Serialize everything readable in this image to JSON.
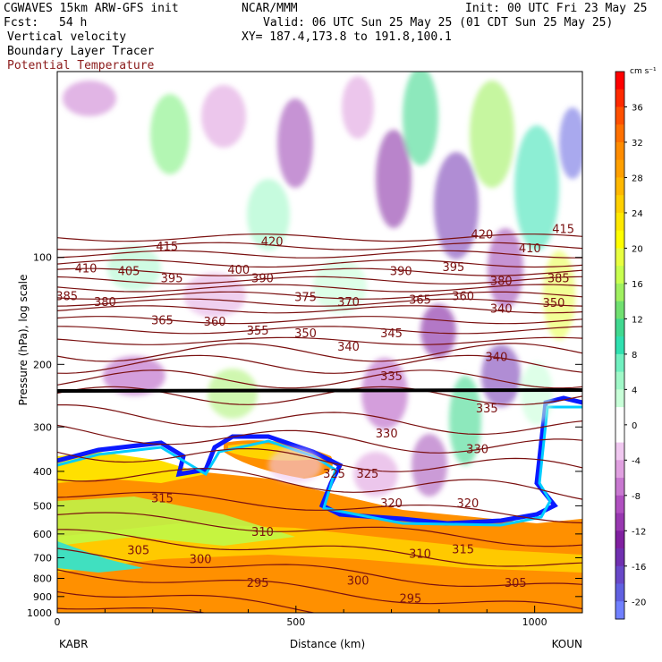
{
  "header": {
    "model": "CGWAVES 15km ARW-GFS init",
    "org": "NCAR/MMM",
    "init": "Init: 00 UTC Fri 23 May 25",
    "fcst_label": "Fcst:",
    "fcst_value": "54 h",
    "valid": "Valid: 06 UTC Sun 25 May 25 (01 CDT Sun 25 May 25)",
    "field1": "Vertical velocity",
    "field2": "Boundary Layer Tracer",
    "field3": "Potential Temperature",
    "xy": "XY= 187.4,173.8 to 191.8,100.1"
  },
  "colors": {
    "potential_temperature": "#7a1010",
    "tracer": "#0000ff"
  },
  "chart_data": {
    "type": "heatmap",
    "title": "",
    "xlabel": "Distance (km)",
    "ylabel": "Pressure (hPa), log scale",
    "x_ticks": [
      "0",
      "500",
      "1000"
    ],
    "x_tick_values": [
      0,
      500,
      1000
    ],
    "xlim": [
      0,
      1100
    ],
    "y_scale": "log",
    "ylim": [
      1000,
      30
    ],
    "y_ticks": [
      "100",
      "200",
      "300",
      "400",
      "500",
      "600",
      "700",
      "800",
      "900",
      "1000"
    ],
    "y_tick_values": [
      100,
      200,
      300,
      400,
      500,
      600,
      700,
      800,
      900,
      1000
    ],
    "endpoints": {
      "left": "KABR",
      "right": "KOUN"
    },
    "colorbar": {
      "units": "cm s⁻¹",
      "labels": [
        "36",
        "32",
        "28",
        "24",
        "20",
        "16",
        "12",
        "8",
        "4",
        "0",
        "-4",
        "-8",
        "-12",
        "-16",
        "-20"
      ],
      "label_values": [
        36,
        32,
        28,
        24,
        20,
        16,
        12,
        8,
        4,
        0,
        -4,
        -8,
        -12,
        -16,
        -20
      ],
      "colors": [
        "#ff0000",
        "#ff2a00",
        "#ff5000",
        "#ff7000",
        "#ff8c00",
        "#ffa000",
        "#ffb800",
        "#ffd000",
        "#ffe800",
        "#ffff00",
        "#e8ff40",
        "#c8ff50",
        "#a0f060",
        "#70e070",
        "#40d890",
        "#30e0b0",
        "#70f0c0",
        "#a0f8c8",
        "#c8ffd8",
        "#ffffff",
        "#ffffff",
        "#f0c8f0",
        "#e0a0e0",
        "#c878d0",
        "#b050c0",
        "#9838b0",
        "#8020a0",
        "#7030b0",
        "#6848c8",
        "#6060e0",
        "#7080ff"
      ]
    },
    "theta_labels": [
      {
        "text": "415",
        "x": 230,
        "p": 93
      },
      {
        "text": "420",
        "x": 450,
        "p": 90
      },
      {
        "text": "420",
        "x": 890,
        "p": 86
      },
      {
        "text": "415",
        "x": 1060,
        "p": 83
      },
      {
        "text": "410",
        "x": 60,
        "p": 107
      },
      {
        "text": "405",
        "x": 150,
        "p": 109
      },
      {
        "text": "400",
        "x": 380,
        "p": 108
      },
      {
        "text": "395",
        "x": 240,
        "p": 114
      },
      {
        "text": "390",
        "x": 430,
        "p": 114
      },
      {
        "text": "390",
        "x": 720,
        "p": 109
      },
      {
        "text": "395",
        "x": 830,
        "p": 106
      },
      {
        "text": "410",
        "x": 990,
        "p": 94
      },
      {
        "text": "380",
        "x": 930,
        "p": 116
      },
      {
        "text": "385",
        "x": 1050,
        "p": 114
      },
      {
        "text": "385",
        "x": 20,
        "p": 128
      },
      {
        "text": "380",
        "x": 100,
        "p": 133
      },
      {
        "text": "375",
        "x": 520,
        "p": 129
      },
      {
        "text": "370",
        "x": 610,
        "p": 133
      },
      {
        "text": "365",
        "x": 760,
        "p": 131
      },
      {
        "text": "360",
        "x": 850,
        "p": 128
      },
      {
        "text": "340",
        "x": 930,
        "p": 139
      },
      {
        "text": "350",
        "x": 1040,
        "p": 134
      },
      {
        "text": "365",
        "x": 220,
        "p": 150
      },
      {
        "text": "360",
        "x": 330,
        "p": 151
      },
      {
        "text": "355",
        "x": 420,
        "p": 160
      },
      {
        "text": "350",
        "x": 520,
        "p": 163
      },
      {
        "text": "345",
        "x": 700,
        "p": 163
      },
      {
        "text": "340",
        "x": 610,
        "p": 178
      },
      {
        "text": "340",
        "x": 920,
        "p": 190
      },
      {
        "text": "335",
        "x": 700,
        "p": 215
      },
      {
        "text": "335",
        "x": 900,
        "p": 265
      },
      {
        "text": "330",
        "x": 690,
        "p": 312
      },
      {
        "text": "330",
        "x": 880,
        "p": 345
      },
      {
        "text": "325",
        "x": 580,
        "p": 405
      },
      {
        "text": "325",
        "x": 650,
        "p": 405
      },
      {
        "text": "320",
        "x": 700,
        "p": 490
      },
      {
        "text": "320",
        "x": 860,
        "p": 490
      },
      {
        "text": "315",
        "x": 220,
        "p": 475
      },
      {
        "text": "310",
        "x": 430,
        "p": 590
      },
      {
        "text": "310",
        "x": 760,
        "p": 680
      },
      {
        "text": "315",
        "x": 850,
        "p": 660
      },
      {
        "text": "305",
        "x": 170,
        "p": 665
      },
      {
        "text": "300",
        "x": 300,
        "p": 705
      },
      {
        "text": "295",
        "x": 420,
        "p": 820
      },
      {
        "text": "300",
        "x": 630,
        "p": 810
      },
      {
        "text": "295",
        "x": 740,
        "p": 910
      },
      {
        "text": "305",
        "x": 960,
        "p": 820
      }
    ]
  }
}
